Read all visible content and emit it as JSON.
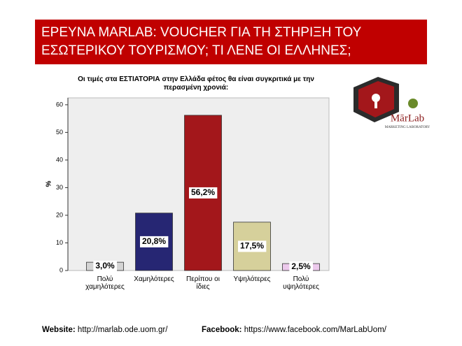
{
  "header": {
    "title_lines": [
      "ΕΡΕΥΝΑ MARLAB: VOUCHER ΓΙΑ ΤΗ ΣΤΗΡΙΞΗ ΤΟΥ",
      "ΕΣΩΤΕΡΙΚΟΥ ΤΟΥΡΙΣΜΟΥ; ΤΙ ΛΕΝΕ ΟΙ ΕΛΛΗΝΕΣ;"
    ]
  },
  "logo": {
    "name": "MārLab",
    "subtitle": "MARKETING LABORATORY"
  },
  "chart_data": {
    "type": "bar",
    "title_lines": [
      "Οι τιμές στα ΕΣΤΙΑΤΟΡΙΑ στην Ελλάδα φέτος θα είναι συγκριτικά με την",
      "περασμένη χρονιά:"
    ],
    "y_label": "%",
    "categories": [
      "Πολύ χαμηλότερες",
      "Χαμηλότερες",
      "Περίπου οι ίδιες",
      "Υψηλότερες",
      "Πολύ υψηλότερες"
    ],
    "values": [
      3.0,
      20.8,
      56.2,
      17.5,
      2.5
    ],
    "value_labels": [
      "3,0%",
      "20,8%",
      "56,2%",
      "17,5%",
      "2,5%"
    ],
    "colors": [
      "#d4d4d4",
      "#262673",
      "#a3171b",
      "#d6d09b",
      "#ecc9ec"
    ],
    "ylim": [
      0,
      62.5
    ],
    "yticks": [
      0,
      10,
      20,
      30,
      40,
      50,
      60
    ]
  },
  "footer": {
    "website_label": "Website:",
    "website": "http://marlab.ode.uom.gr/",
    "facebook_label": "Facebook:",
    "facebook": "https://www.facebook.com/MarLabUom/"
  }
}
